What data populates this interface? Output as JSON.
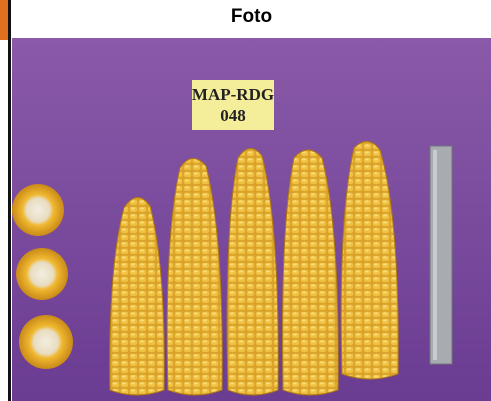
{
  "header": {
    "title": "Foto"
  },
  "photo": {
    "label": {
      "line1": "MAP-RDG",
      "line2": "048"
    }
  }
}
